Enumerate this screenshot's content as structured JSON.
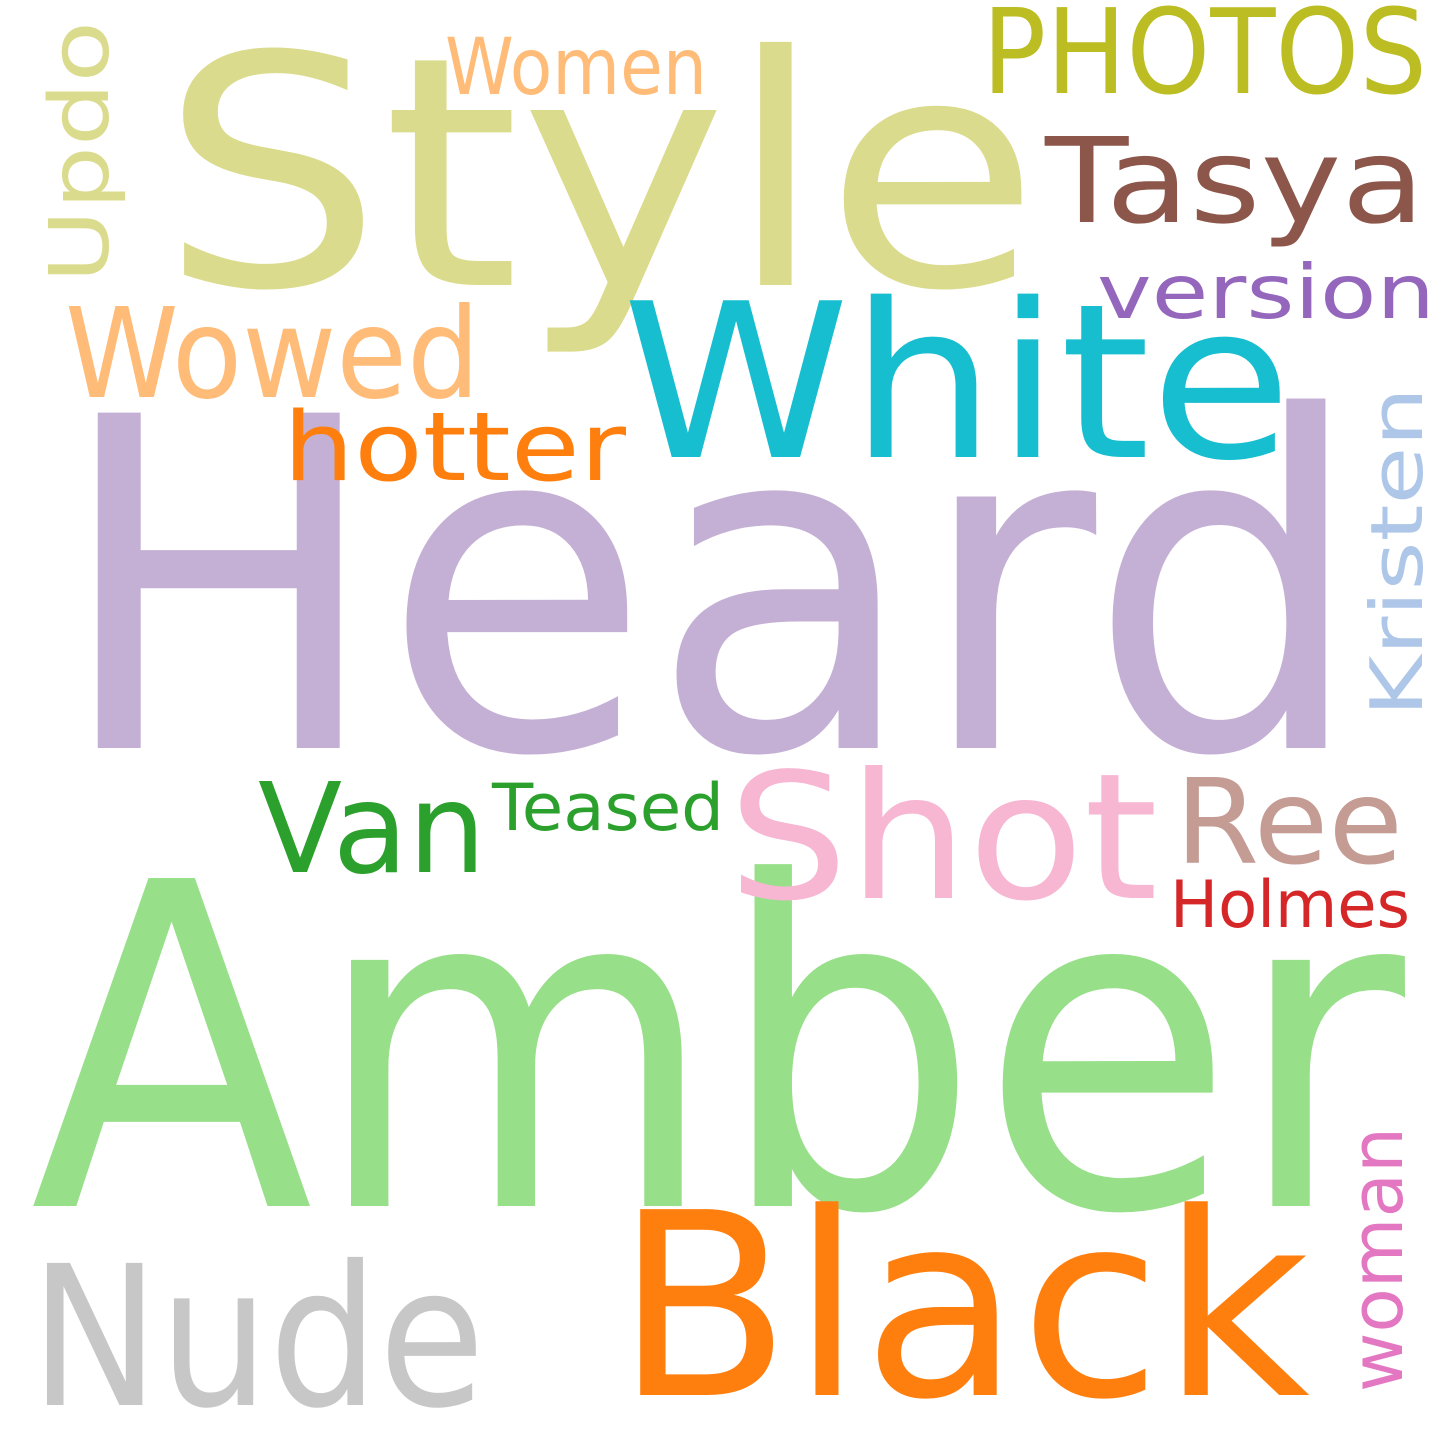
{
  "cloud": {
    "words": [
      {
        "text": "Heard",
        "color": "#c5b0d5"
      },
      {
        "text": "Amber",
        "color": "#98df8a"
      },
      {
        "text": "Style",
        "color": "#dbdb8d"
      },
      {
        "text": "Black",
        "color": "#ff7f0e"
      },
      {
        "text": "White",
        "color": "#17becf"
      },
      {
        "text": "Shot",
        "color": "#f7b6d2"
      },
      {
        "text": "Nude",
        "color": "#c7c7c7"
      },
      {
        "text": "PHOTOS",
        "color": "#bcbd22"
      },
      {
        "text": "Tasya",
        "color": "#8c564b"
      },
      {
        "text": "Wowed",
        "color": "#ffbb78"
      },
      {
        "text": "Van",
        "color": "#2ca02c"
      },
      {
        "text": "Ree",
        "color": "#c49c94"
      },
      {
        "text": "hotter",
        "color": "#ff7f0e"
      },
      {
        "text": "version",
        "color": "#9467bd"
      },
      {
        "text": "Women",
        "color": "#ffbb78"
      },
      {
        "text": "Updo",
        "color": "#dbdb8d"
      },
      {
        "text": "Kristen",
        "color": "#aec7e8"
      },
      {
        "text": "woman",
        "color": "#e377c2"
      },
      {
        "text": "Teased",
        "color": "#2ca02c"
      },
      {
        "text": "Holmes",
        "color": "#d62728"
      }
    ]
  }
}
